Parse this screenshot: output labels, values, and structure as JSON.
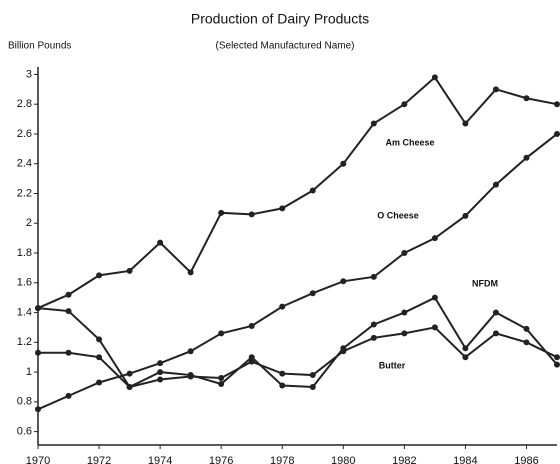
{
  "chart_data": {
    "type": "line",
    "title": "Production of Dairy Products",
    "subtitle": "(Selected Manufactured Name)",
    "y_label": "Billion Pounds",
    "x": [
      1970,
      1971,
      1972,
      1973,
      1974,
      1975,
      1976,
      1977,
      1978,
      1979,
      1980,
      1981,
      1982,
      1983,
      1984,
      1985,
      1986,
      1987
    ],
    "xlim": [
      1970,
      1987
    ],
    "xticks": [
      1970,
      1972,
      1974,
      1976,
      1978,
      1980,
      1982,
      1984,
      1986
    ],
    "ylim": [
      0.51,
      3.05
    ],
    "yticks": [
      0.6,
      0.8,
      1,
      1.2,
      1.4,
      1.6,
      1.8,
      2,
      2.2,
      2.4,
      2.6,
      2.8,
      3
    ],
    "series": [
      {
        "name": "Am Cheese",
        "color": "#222222",
        "values": [
          1.43,
          1.52,
          1.65,
          1.68,
          1.87,
          1.67,
          2.07,
          2.06,
          2.1,
          2.22,
          2.4,
          2.67,
          2.8,
          2.98,
          2.67,
          2.9,
          2.84,
          2.8
        ]
      },
      {
        "name": "O Cheese",
        "color": "#222222",
        "values": [
          0.75,
          0.84,
          0.93,
          0.99,
          1.06,
          1.14,
          1.26,
          1.31,
          1.44,
          1.53,
          1.61,
          1.64,
          1.8,
          1.9,
          2.05,
          2.26,
          2.44,
          2.6
        ]
      },
      {
        "name": "NFDM",
        "color": "#222222",
        "values": [
          1.43,
          1.41,
          1.22,
          0.9,
          1.0,
          0.98,
          0.92,
          1.1,
          0.91,
          0.9,
          1.16,
          1.32,
          1.4,
          1.5,
          1.16,
          1.4,
          1.29,
          1.05
        ]
      },
      {
        "name": "Butter",
        "color": "#222222",
        "values": [
          1.13,
          1.13,
          1.1,
          0.9,
          0.95,
          0.97,
          0.96,
          1.07,
          0.99,
          0.98,
          1.14,
          1.23,
          1.26,
          1.3,
          1.1,
          1.26,
          1.2,
          1.1
        ]
      }
    ]
  }
}
